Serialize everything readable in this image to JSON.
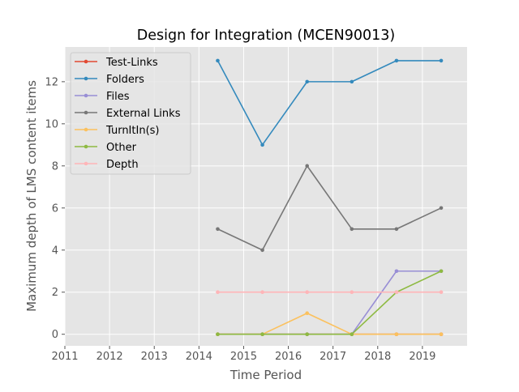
{
  "chart_data": {
    "type": "line",
    "title": "Design for Integration (MCEN90013)",
    "xlabel": "Time Period",
    "ylabel": "Maximum depth of LMS content items",
    "xlim": [
      2011,
      2020
    ],
    "ylim": [
      -0.55,
      13.65
    ],
    "xticks": [
      2011,
      2012,
      2013,
      2014,
      2015,
      2016,
      2017,
      2018,
      2019
    ],
    "xtick_labels": [
      "2011",
      "2012",
      "2013",
      "2014",
      "2015",
      "2016",
      "2017",
      "2018",
      "2019"
    ],
    "yticks": [
      0,
      2,
      4,
      6,
      8,
      10,
      12
    ],
    "ytick_labels": [
      "0",
      "2",
      "4",
      "6",
      "8",
      "10",
      "12"
    ],
    "grid": true,
    "legend_position": "top-left",
    "x": [
      2014.42,
      2015.42,
      2016.42,
      2017.42,
      2018.42,
      2019.42
    ],
    "series": [
      {
        "name": "Test-Links",
        "color": "#e24a33",
        "values": [
          0,
          0,
          0,
          0,
          0,
          0
        ]
      },
      {
        "name": "Folders",
        "color": "#348abd",
        "values": [
          13,
          9,
          12,
          12,
          13,
          13
        ]
      },
      {
        "name": "Files",
        "color": "#988ed5",
        "values": [
          0,
          0,
          0,
          0,
          3,
          3
        ]
      },
      {
        "name": "External Links",
        "color": "#777777",
        "values": [
          5,
          4,
          8,
          5,
          5,
          6
        ]
      },
      {
        "name": "TurnItIn(s)",
        "color": "#fbc15e",
        "values": [
          0,
          0,
          1,
          0,
          0,
          0
        ]
      },
      {
        "name": "Other",
        "color": "#8eba42",
        "values": [
          0,
          0,
          0,
          0,
          2,
          3
        ]
      },
      {
        "name": "Depth",
        "color": "#ffb5b8",
        "values": [
          2,
          2,
          2,
          2,
          2,
          2
        ]
      }
    ]
  }
}
